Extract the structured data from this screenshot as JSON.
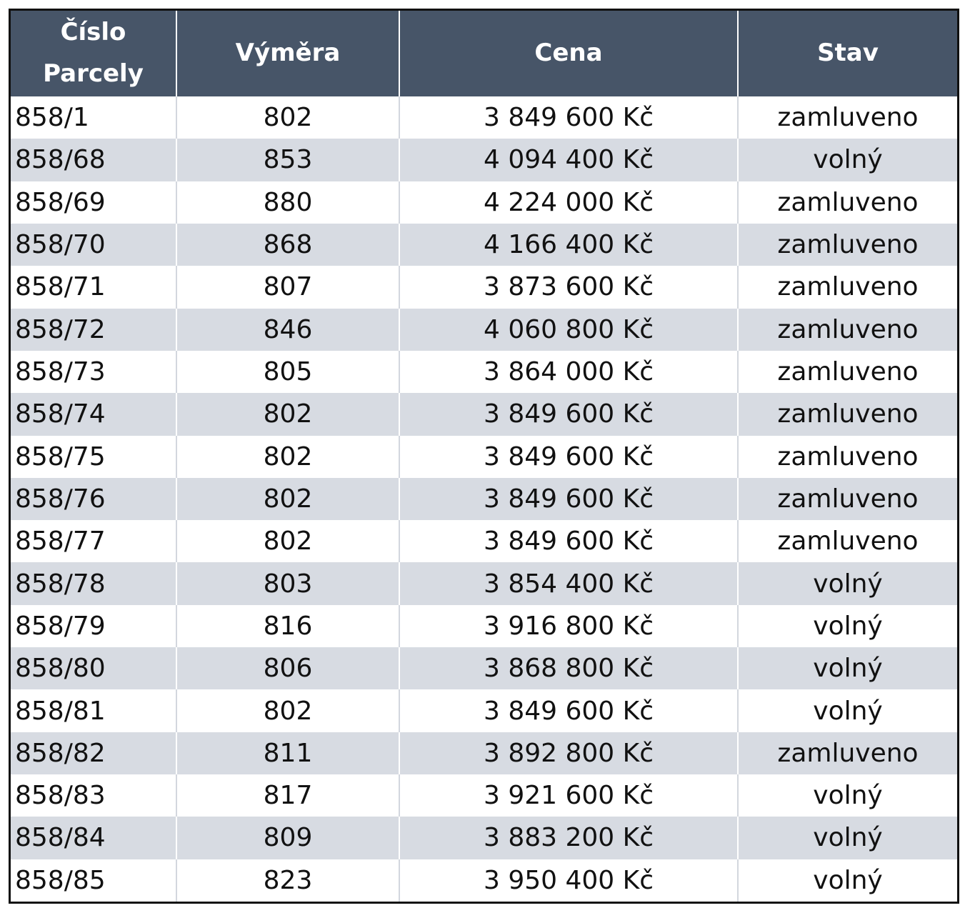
{
  "columns": [
    "Číslo Parcely",
    "Výměra",
    "Cena",
    "Stav"
  ],
  "rows": [
    [
      "858/1",
      "802",
      "3 849 600 Kč",
      "zamluveno"
    ],
    [
      "858/68",
      "853",
      "4 094 400 Kč",
      "volný"
    ],
    [
      "858/69",
      "880",
      "4 224 000 Kč",
      "zamluveno"
    ],
    [
      "858/70",
      "868",
      "4 166 400 Kč",
      "zamluveno"
    ],
    [
      "858/71",
      "807",
      "3 873 600 Kč",
      "zamluveno"
    ],
    [
      "858/72",
      "846",
      "4 060 800 Kč",
      "zamluveno"
    ],
    [
      "858/73",
      "805",
      "3 864 000 Kč",
      "zamluveno"
    ],
    [
      "858/74",
      "802",
      "3 849 600 Kč",
      "zamluveno"
    ],
    [
      "858/75",
      "802",
      "3 849 600 Kč",
      "zamluveno"
    ],
    [
      "858/76",
      "802",
      "3 849 600 Kč",
      "zamluveno"
    ],
    [
      "858/77",
      "802",
      "3 849 600 Kč",
      "zamluveno"
    ],
    [
      "858/78",
      "803",
      "3 854 400 Kč",
      "volný"
    ],
    [
      "858/79",
      "816",
      "3 916 800 Kč",
      "volný"
    ],
    [
      "858/80",
      "806",
      "3 868 800 Kč",
      "volný"
    ],
    [
      "858/81",
      "802",
      "3 849 600 Kč",
      "volný"
    ],
    [
      "858/82",
      "811",
      "3 892 800 Kč",
      "zamluveno"
    ],
    [
      "858/83",
      "817",
      "3 921 600 Kč",
      "volný"
    ],
    [
      "858/84",
      "809",
      "3 883 200 Kč",
      "volný"
    ],
    [
      "858/85",
      "823",
      "3 950 400 Kč",
      "volný"
    ]
  ],
  "colors": {
    "header_bg": "#475568",
    "header_text": "#ffffff",
    "row_alt_bg": "#d7dbe2",
    "border": "#111111"
  }
}
